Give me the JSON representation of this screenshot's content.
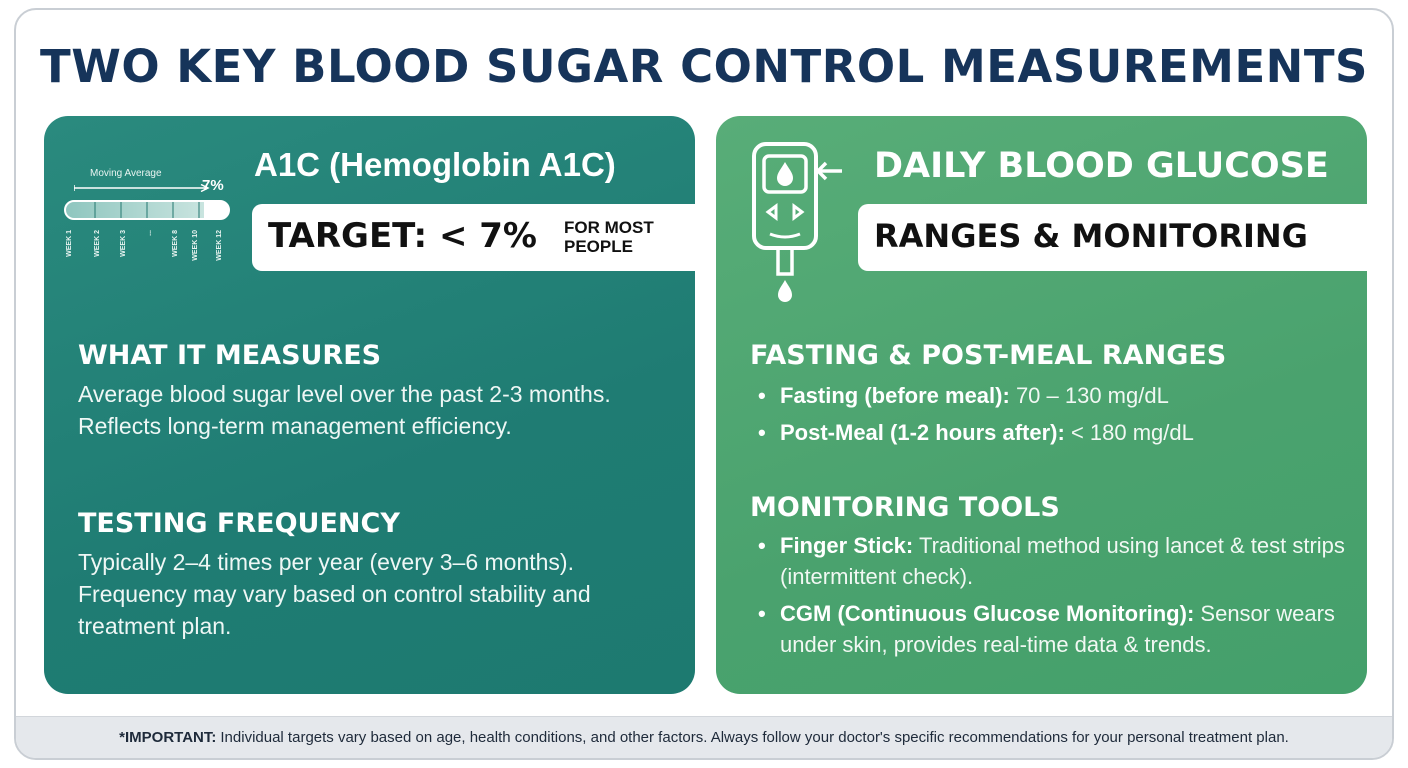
{
  "title": "TWO KEY BLOOD SUGAR CONTROL MEASUREMENTS",
  "a1c": {
    "chart": {
      "label": "Moving Average",
      "value": "7%",
      "fill_fraction": 0.85,
      "weeks": [
        "WEEK 1",
        "WEEK 2",
        "WEEK 3",
        "...",
        "WEEK 8",
        "WEEK 10",
        "WEEK 12"
      ]
    },
    "title": "A1C (Hemoglobin A1C)",
    "target": "TARGET: < 7%",
    "target_note": "FOR MOST PEOPLE",
    "measures_heading": "WHAT IT MEASURES",
    "measures_text": "Average blood sugar level over the past 2-3 months. Reflects long-term management efficiency.",
    "frequency_heading": "TESTING FREQUENCY",
    "frequency_text": "Typically 2–4 times per year (every 3–6 months). Frequency may vary based on control stability and treatment plan."
  },
  "daily": {
    "icon": "glucose-meter-icon",
    "title": "DAILY BLOOD GLUCOSE",
    "subtitle": "RANGES & MONITORING",
    "ranges_heading": "FASTING & POST-MEAL RANGES",
    "ranges": [
      {
        "label": "Fasting (before meal):",
        "value": "70 – 130 mg/dL"
      },
      {
        "label": "Post-Meal (1-2 hours after):",
        "value": "< 180 mg/dL"
      }
    ],
    "tools_heading": "MONITORING TOOLS",
    "tools": [
      {
        "label": "Finger Stick:",
        "value": "Traditional method using lancet & test strips (intermittent check)."
      },
      {
        "label": "CGM (Continuous Glucose Monitoring):",
        "value": "Sensor wears under skin, provides real-time data & trends."
      }
    ]
  },
  "footer": {
    "label": "*IMPORTANT:",
    "text": "Individual targets vary based on age, health conditions, and other factors. Always follow your doctor's specific recommendations for your personal treatment plan."
  }
}
